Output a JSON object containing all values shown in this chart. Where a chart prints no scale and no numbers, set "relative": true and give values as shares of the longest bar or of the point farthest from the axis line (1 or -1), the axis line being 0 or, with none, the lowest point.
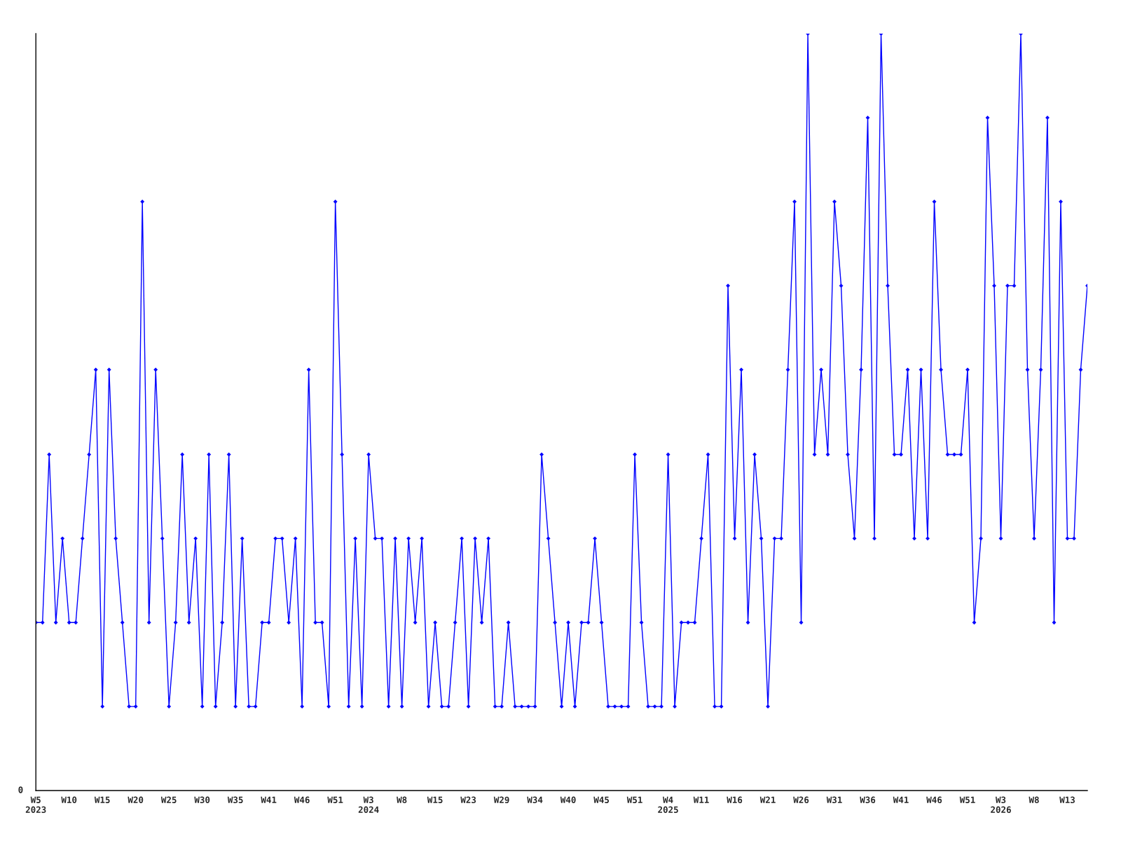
{
  "chart_data": {
    "type": "line",
    "relative": true,
    "marker": "diamond",
    "line_style": "solid",
    "grid": false,
    "legend": false,
    "annotations": [
      "0"
    ],
    "categories": [
      "W5\n2023",
      null,
      null,
      null,
      null,
      "W10",
      null,
      null,
      null,
      null,
      "W15",
      null,
      null,
      null,
      null,
      "W20",
      null,
      null,
      null,
      null,
      "W25",
      null,
      null,
      null,
      null,
      "W30",
      null,
      null,
      null,
      null,
      "W35",
      null,
      null,
      null,
      null,
      "W41",
      null,
      null,
      null,
      null,
      "W46",
      null,
      null,
      null,
      null,
      "W51",
      null,
      null,
      null,
      null,
      "W3\n2024",
      null,
      null,
      null,
      null,
      "W8",
      null,
      null,
      null,
      null,
      "W15",
      null,
      null,
      null,
      null,
      "W23",
      null,
      null,
      null,
      null,
      "W29",
      null,
      null,
      null,
      null,
      "W34",
      null,
      null,
      null,
      null,
      "W40",
      null,
      null,
      null,
      null,
      "W45",
      null,
      null,
      null,
      null,
      "W51",
      null,
      null,
      null,
      null,
      "W4\n2025",
      null,
      null,
      null,
      null,
      "W11",
      null,
      null,
      null,
      null,
      "W16",
      null,
      null,
      null,
      null,
      "W21",
      null,
      null,
      null,
      null,
      "W26",
      null,
      null,
      null,
      null,
      "W31",
      null,
      null,
      null,
      null,
      "W36",
      null,
      null,
      null,
      null,
      "W41",
      null,
      null,
      null,
      null,
      "W46",
      null,
      null,
      null,
      null,
      "W51",
      null,
      null,
      null,
      null,
      "W3\n2026",
      null,
      null,
      null,
      null,
      "W8",
      null,
      null,
      null,
      null,
      "W13",
      null,
      null,
      null
    ],
    "series": [
      {
        "color": "#0000ff",
        "values": [
          0.222,
          0.222,
          0.444,
          0.222,
          0.333,
          0.222,
          0.222,
          0.333,
          0.444,
          0.556,
          0.111,
          0.556,
          0.333,
          0.222,
          0.111,
          0.111,
          0.778,
          0.222,
          0.556,
          0.333,
          0.111,
          0.222,
          0.444,
          0.222,
          0.333,
          0.111,
          0.444,
          0.111,
          0.222,
          0.444,
          0.111,
          0.333,
          0.111,
          0.111,
          0.222,
          0.222,
          0.333,
          0.333,
          0.222,
          0.333,
          0.111,
          0.556,
          0.222,
          0.222,
          0.111,
          0.778,
          0.444,
          0.111,
          0.333,
          0.111,
          0.444,
          0.333,
          0.333,
          0.111,
          0.333,
          0.111,
          0.333,
          0.222,
          0.333,
          0.111,
          0.222,
          0.111,
          0.111,
          0.222,
          0.333,
          0.111,
          0.333,
          0.222,
          0.333,
          0.111,
          0.111,
          0.222,
          0.111,
          0.111,
          0.111,
          0.111,
          0.444,
          0.333,
          0.222,
          0.111,
          0.222,
          0.111,
          0.222,
          0.222,
          0.333,
          0.222,
          0.111,
          0.111,
          0.111,
          0.111,
          0.444,
          0.222,
          0.111,
          0.111,
          0.111,
          0.444,
          0.111,
          0.222,
          0.222,
          0.222,
          0.333,
          0.444,
          0.111,
          0.111,
          0.667,
          0.333,
          0.556,
          0.222,
          0.444,
          0.333,
          0.111,
          0.333,
          0.333,
          0.556,
          0.778,
          0.222,
          1,
          0.444,
          0.556,
          0.444,
          0.778,
          0.667,
          0.444,
          0.333,
          0.556,
          0.889,
          0.333,
          1,
          0.667,
          0.444,
          0.444,
          0.556,
          0.333,
          0.556,
          0.333,
          0.778,
          0.556,
          0.444,
          0.444,
          0.444,
          0.556,
          0.222,
          0.333,
          0.889,
          0.667,
          0.333,
          0.667,
          0.667,
          1,
          0.556,
          0.333,
          0.556,
          0.889,
          0.222,
          0.778,
          0.333,
          0.333,
          0.556,
          0.667
        ]
      }
    ]
  }
}
